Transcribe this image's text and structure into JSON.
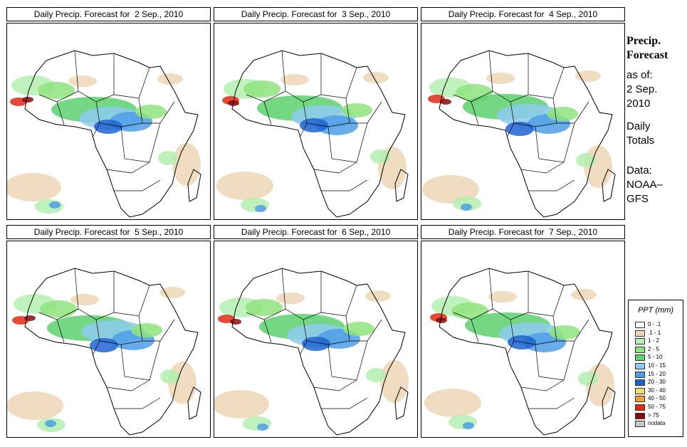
{
  "panels": [
    {
      "title": "Daily Precip. Forecast for  2 Sep., 2010"
    },
    {
      "title": "Daily Precip. Forecast for  3 Sep., 2010"
    },
    {
      "title": "Daily Precip. Forecast for  4 Sep., 2010"
    },
    {
      "title": "Daily Precip. Forecast for  5 Sep., 2010"
    },
    {
      "title": "Daily Precip. Forecast for  6 Sep., 2010"
    },
    {
      "title": "Daily Precip. Forecast for  7 Sep., 2010"
    }
  ],
  "sidebar": {
    "title_line1": "Precip.",
    "title_line2": "Forecast",
    "asof_label": "as of:",
    "asof_line1": "2 Sep.",
    "asof_line2": "2010",
    "totals_line1": "Daily",
    "totals_line2": "Totals",
    "data_line1": "Data:",
    "data_line2": "NOAA–",
    "data_line3": "GFS"
  },
  "legend": {
    "title": "PPT (mm)",
    "items": [
      {
        "label": "0 - .1",
        "color": "#ffffff"
      },
      {
        "label": ".1 - 1",
        "color": "#ecd6b6"
      },
      {
        "label": "1 - 2",
        "color": "#b4eeb0"
      },
      {
        "label": "2 - 5",
        "color": "#8ee47e"
      },
      {
        "label": "5 - 10",
        "color": "#5ad06e"
      },
      {
        "label": "10 - 15",
        "color": "#8ecaf0"
      },
      {
        "label": "15 - 20",
        "color": "#4e9ee6"
      },
      {
        "label": "20 - 30",
        "color": "#1e64d0"
      },
      {
        "label": "30 - 40",
        "color": "#f5dc6e"
      },
      {
        "label": "40 - 50",
        "color": "#f2a03c"
      },
      {
        "label": "50 - 75",
        "color": "#e02a14"
      },
      {
        "label": "> 75",
        "color": "#8c0a0a"
      },
      {
        "label": "nodata",
        "color": "#c8c8c8"
      }
    ]
  }
}
